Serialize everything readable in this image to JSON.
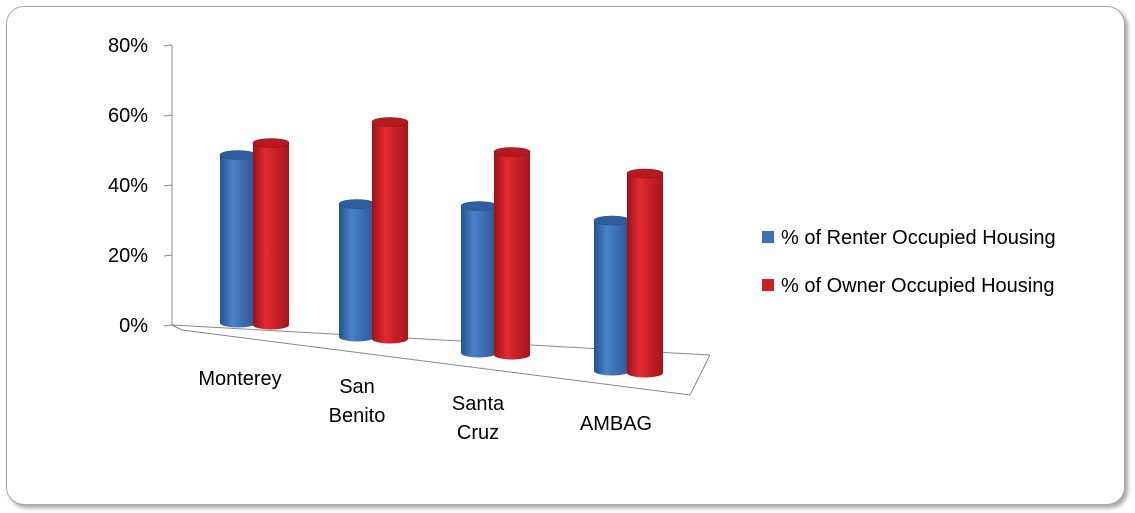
{
  "chart_data": {
    "type": "bar",
    "categories": [
      "Monterey",
      "San Benito",
      "Santa Cruz",
      "AMBAG"
    ],
    "category_lines": [
      [
        "Monterey"
      ],
      [
        "San",
        "Benito"
      ],
      [
        "Santa",
        "Cruz"
      ],
      [
        "AMBAG"
      ]
    ],
    "series": [
      {
        "name": "% of Renter Occupied Housing",
        "values": [
          48,
          38,
          42,
          43
        ],
        "color": "#3b6fb6"
      },
      {
        "name": "% of Owner Occupied Housing",
        "values": [
          52,
          62,
          58,
          57
        ],
        "color": "#cc1f26"
      }
    ],
    "ylim": [
      0,
      80
    ],
    "yticks": [
      "0%",
      "20%",
      "40%",
      "60%",
      "80%"
    ],
    "legend_position": "right",
    "grid": false
  }
}
